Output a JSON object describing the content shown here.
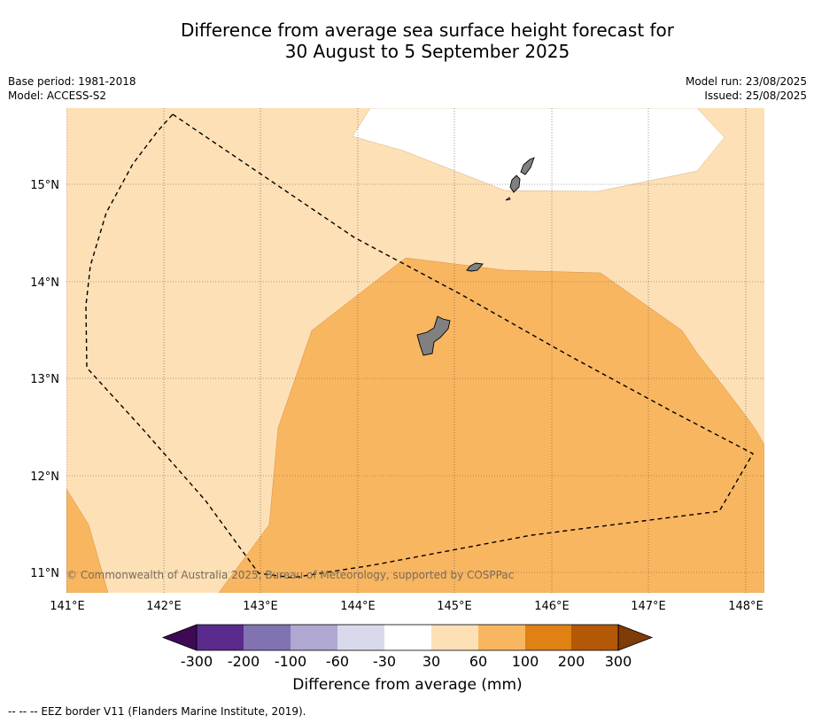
{
  "title_line1": "Difference from average sea surface height forecast for",
  "title_line2": "30 August to 5 September 2025",
  "meta_left": {
    "base_period": "Base period: 1981-2018",
    "model": "Model: ACCESS-S2"
  },
  "meta_right": {
    "model_run": "Model run: 23/08/2025",
    "issued": "Issued: 25/08/2025"
  },
  "map": {
    "lat_labels": [
      "15°N",
      "14°N",
      "13°N",
      "12°N",
      "11°N"
    ],
    "lon_labels": [
      "141°E",
      "142°E",
      "143°E",
      "144°E",
      "145°E",
      "146°E",
      "147°E",
      "148°E"
    ],
    "copyright": "© Commonwealth of Australia 2025, Bureau of Meteorology, supported by COSPPac",
    "land_color": "#808080"
  },
  "colorbar": {
    "label": "Difference from average (mm)",
    "tick_labels": [
      "-300",
      "-200",
      "-100",
      "-60",
      "-30",
      "30",
      "60",
      "100",
      "200",
      "300"
    ],
    "colors": [
      "#3f0a55",
      "#5a2a8c",
      "#8173b1",
      "#b0a7d2",
      "#d9d9ec",
      "#ffffff",
      "#fde0b5",
      "#f9b660",
      "#e08114",
      "#b35806",
      "#7f3b08"
    ]
  },
  "footer": "-- -- -- EEZ border V11 (Flanders Marine Institute, 2019)."
}
